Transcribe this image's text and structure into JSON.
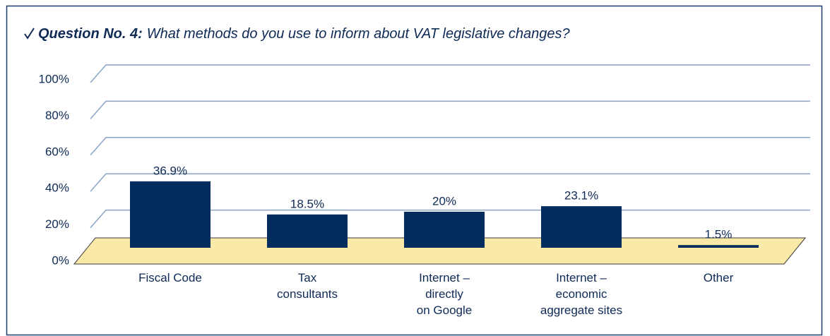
{
  "chart_data": {
    "type": "bar",
    "title_prefix": "Question No. 4:",
    "title": "What methods do you use to inform about VAT legislative changes?",
    "categories": [
      "Fiscal Code",
      "Tax\nconsultants",
      "Internet –\ndirectly\non Google",
      "Internet –\neconomic\naggregate sites",
      "Other"
    ],
    "values": [
      36.9,
      18.5,
      20,
      23.1,
      1.5
    ],
    "value_labels": [
      "36.9%",
      "18.5%",
      "20%",
      "23.1%",
      "1.5%"
    ],
    "color": "#022b5e",
    "floor_color": "#fbe9a7",
    "ylim": [
      0,
      100
    ],
    "yticks": [
      {
        "value": 0,
        "label": "0%"
      },
      {
        "value": 20,
        "label": "20%"
      },
      {
        "value": 40,
        "label": "40%"
      },
      {
        "value": 60,
        "label": "60%"
      },
      {
        "value": 80,
        "label": "80%"
      },
      {
        "value": 100,
        "label": "100%"
      }
    ],
    "grid": true
  }
}
